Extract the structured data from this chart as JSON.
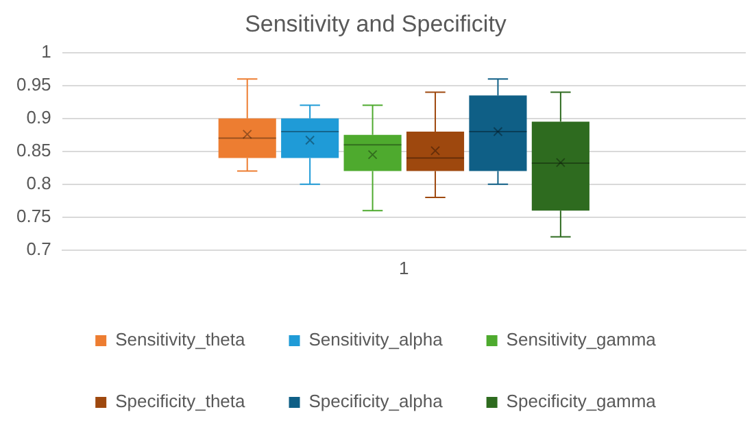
{
  "chart_data": {
    "type": "box",
    "title": "Sensitivity and Specificity",
    "categories": [
      "1"
    ],
    "ylim": [
      0.7,
      1
    ],
    "yticks": [
      0.7,
      0.75,
      0.8,
      0.85,
      0.9,
      0.95,
      1
    ],
    "grid": "y",
    "legend": "bottom",
    "series": [
      {
        "name": "Sensitivity_theta",
        "color": "#ed7d31",
        "boxes": [
          {
            "low": 0.82,
            "q1": 0.84,
            "median": 0.87,
            "q3": 0.9,
            "high": 0.96,
            "mean": 0.876
          }
        ]
      },
      {
        "name": "Sensitivity_alpha",
        "color": "#1f9bd7",
        "boxes": [
          {
            "low": 0.8,
            "q1": 0.84,
            "median": 0.88,
            "q3": 0.9,
            "high": 0.92,
            "mean": 0.867
          }
        ]
      },
      {
        "name": "Sensitivity_gamma",
        "color": "#4eaa2e",
        "boxes": [
          {
            "low": 0.76,
            "q1": 0.82,
            "median": 0.86,
            "q3": 0.875,
            "high": 0.92,
            "mean": 0.845
          }
        ]
      },
      {
        "name": "Specificity_theta",
        "color": "#9e480e",
        "boxes": [
          {
            "low": 0.78,
            "q1": 0.82,
            "median": 0.84,
            "q3": 0.88,
            "high": 0.94,
            "mean": 0.851
          }
        ]
      },
      {
        "name": "Specificity_alpha",
        "color": "#0f5f86",
        "boxes": [
          {
            "low": 0.8,
            "q1": 0.82,
            "median": 0.88,
            "q3": 0.935,
            "high": 0.96,
            "mean": 0.88
          }
        ]
      },
      {
        "name": "Specificity_gamma",
        "color": "#2e6b1f",
        "boxes": [
          {
            "low": 0.72,
            "q1": 0.76,
            "median": 0.832,
            "q3": 0.895,
            "high": 0.94,
            "mean": 0.833
          }
        ]
      }
    ]
  }
}
